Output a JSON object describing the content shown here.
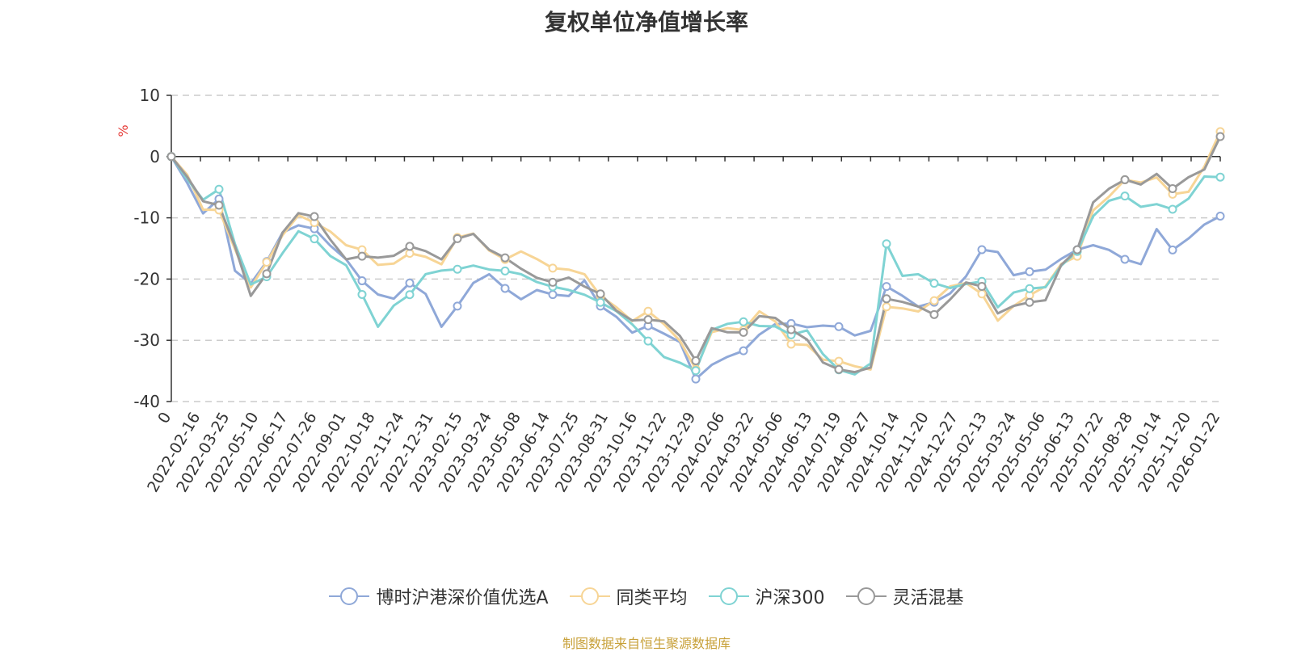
{
  "chart_data": {
    "type": "line",
    "title": "复权单位净值增长率",
    "ylabel": "%",
    "ylim": [
      -40,
      10
    ],
    "yticks": [
      10,
      0,
      -10,
      -20,
      -30,
      -40
    ],
    "x_tick_labels": [
      "0",
      "2022-02-16",
      "2022-03-25",
      "2022-05-10",
      "2022-06-17",
      "2022-07-26",
      "2022-09-01",
      "2022-10-18",
      "2022-11-24",
      "2022-12-31",
      "2023-02-15",
      "2023-03-24",
      "2023-05-08",
      "2023-06-14",
      "2023-07-25",
      "2023-08-31",
      "2023-10-16",
      "2023-11-22",
      "2023-12-29",
      "2024-02-06",
      "2024-03-22",
      "2024-05-06",
      "2024-06-13",
      "2024-07-19",
      "2024-08-27",
      "2024-10-14",
      "2024-11-20",
      "2024-12-27",
      "2025-02-13",
      "2025-03-24",
      "2025-05-06",
      "2025-06-13",
      "2025-07-22",
      "2025-08-28",
      "2025-10-14",
      "2025-11-20",
      "2026-01-22"
    ],
    "grid": true,
    "legend_position": "bottom",
    "series": [
      {
        "name": "博时沪港深价值优选A",
        "color": "#8fa8d8",
        "values": [
          0,
          -5,
          -10,
          -7,
          -18,
          -20,
          -17,
          -13,
          -12,
          -12,
          -14,
          -16,
          -20,
          -23,
          -24,
          -21,
          -22,
          -27,
          -24,
          -21,
          -20,
          -22,
          -23,
          -21,
          -22,
          -23,
          -21,
          -25,
          -26,
          -28,
          -27,
          -29,
          -31,
          -37,
          -34,
          -32,
          -31,
          -29,
          -28,
          -28,
          -28,
          -27,
          -27,
          -29,
          -29,
          -22,
          -23,
          -24,
          -23,
          -22,
          -20,
          -16,
          -16,
          -19,
          -18,
          -18,
          -17,
          -16,
          -15,
          -15,
          -16,
          -17,
          -12,
          -16,
          -14,
          -11,
          -9
        ]
      },
      {
        "name": "同类平均",
        "color": "#f7d596",
        "values": [
          0,
          -3,
          -8,
          -8,
          -15,
          -22,
          -18,
          -13,
          -9,
          -10,
          -12,
          -15,
          -16,
          -18,
          -17,
          -15,
          -16,
          -18,
          -14,
          -13,
          -15,
          -16,
          -15,
          -17,
          -19,
          -19,
          -19,
          -22,
          -24,
          -27,
          -26,
          -28,
          -30,
          -34,
          -28,
          -28,
          -29,
          -26,
          -27,
          -30,
          -30,
          -33,
          -34,
          -35,
          -35,
          -24,
          -24,
          -25,
          -24,
          -22,
          -21,
          -22,
          -26,
          -24,
          -23,
          -22,
          -18,
          -16,
          -8,
          -6,
          -4,
          -5,
          -4,
          -6,
          -5,
          -1,
          4
        ]
      },
      {
        "name": "沪深300",
        "color": "#7fd3d3",
        "values": [
          0,
          -3,
          -7,
          -6,
          -15,
          -21,
          -19,
          -15,
          -12,
          -14,
          -17,
          -18,
          -22,
          -27,
          -24,
          -23,
          -20,
          -19,
          -18,
          -17,
          -18,
          -19,
          -20,
          -21,
          -21,
          -21,
          -22,
          -24,
          -26,
          -28,
          -30,
          -32,
          -33,
          -35,
          -29,
          -28,
          -27,
          -27,
          -27,
          -29,
          -29,
          -33,
          -35,
          -35,
          -33,
          -14,
          -20,
          -20,
          -21,
          -21,
          -20,
          -20,
          -25,
          -23,
          -22,
          -21,
          -17,
          -15,
          -10,
          -8,
          -7,
          -8,
          -7,
          -8,
          -7,
          -4,
          -4
        ]
      },
      {
        "name": "灵活混基",
        "color": "#999999",
        "values": [
          0,
          -4,
          -8,
          -8,
          -14,
          -22,
          -19,
          -13,
          -10,
          -10,
          -13,
          -16,
          -16,
          -17,
          -17,
          -15,
          -15,
          -16,
          -13,
          -13,
          -16,
          -17,
          -18,
          -19,
          -20,
          -20,
          -22,
          -23,
          -25,
          -26,
          -26,
          -27,
          -30,
          -34,
          -28,
          -28,
          -28,
          -26,
          -27,
          -29,
          -30,
          -33,
          -34,
          -35,
          -35,
          -24,
          -24,
          -24,
          -25,
          -23,
          -21,
          -22,
          -26,
          -24,
          -23,
          -23,
          -18,
          -16,
          -8,
          -5,
          -3,
          -4,
          -3,
          -6,
          -4,
          -2,
          4
        ]
      }
    ]
  },
  "source_text": "制图数据来自恒生聚源数据库"
}
